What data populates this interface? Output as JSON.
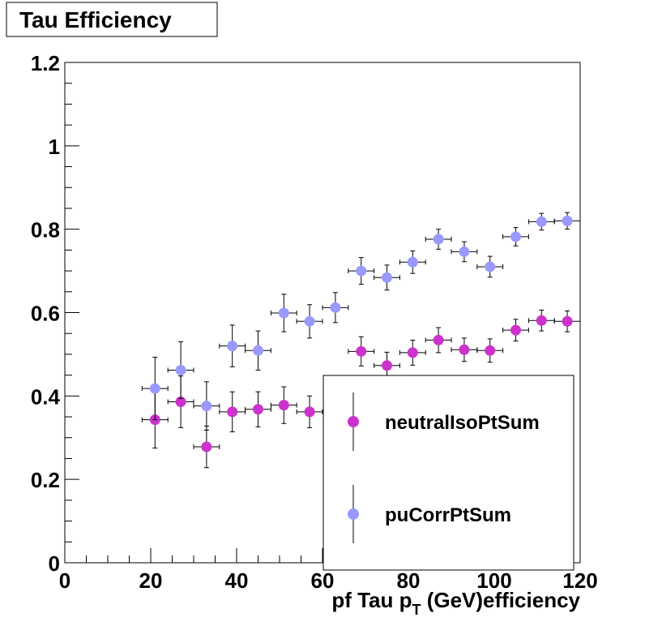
{
  "chart_data": {
    "type": "scatter",
    "title": "Tau Efficiency",
    "xlabel": {
      "main": "pf Tau p",
      "sub": "T",
      "rest": " (GeV)efficiency"
    },
    "xlim": [
      0,
      120
    ],
    "ylim": [
      0,
      1.2
    ],
    "xticks": [
      "0",
      "20",
      "40",
      "60",
      "80",
      "100",
      "120"
    ],
    "yticks": [
      "0",
      "0.2",
      "0.4",
      "0.6",
      "0.8",
      "1",
      "1.2"
    ],
    "xtick_values": [
      0,
      20,
      40,
      60,
      80,
      100,
      120
    ],
    "ytick_values": [
      0,
      0.2,
      0.4,
      0.6,
      0.8,
      1.0,
      1.2
    ],
    "x_halfwidth": 3,
    "legend_position": "bottom-right",
    "grid": false,
    "series": [
      {
        "name": "neutralIsoPtSum",
        "color": "#cc33cc",
        "points": [
          {
            "x": 21,
            "y": 0.343,
            "yerr": 0.068
          },
          {
            "x": 27,
            "y": 0.386,
            "yerr": 0.062
          },
          {
            "x": 33,
            "y": 0.278,
            "yerr": 0.05
          },
          {
            "x": 39,
            "y": 0.362,
            "yerr": 0.048
          },
          {
            "x": 45,
            "y": 0.368,
            "yerr": 0.042
          },
          {
            "x": 51,
            "y": 0.378,
            "yerr": 0.044
          },
          {
            "x": 57,
            "y": 0.362,
            "yerr": 0.038
          },
          {
            "x": 69,
            "y": 0.507,
            "yerr": 0.035
          },
          {
            "x": 75,
            "y": 0.473,
            "yerr": 0.032
          },
          {
            "x": 81,
            "y": 0.504,
            "yerr": 0.03
          },
          {
            "x": 87,
            "y": 0.534,
            "yerr": 0.03
          },
          {
            "x": 93,
            "y": 0.511,
            "yerr": 0.028
          },
          {
            "x": 99,
            "y": 0.509,
            "yerr": 0.028
          },
          {
            "x": 105,
            "y": 0.558,
            "yerr": 0.026
          },
          {
            "x": 111,
            "y": 0.581,
            "yerr": 0.025
          },
          {
            "x": 117,
            "y": 0.579,
            "yerr": 0.025
          }
        ]
      },
      {
        "name": "puCorrPtSum",
        "color": "#9999ff",
        "points": [
          {
            "x": 21,
            "y": 0.418,
            "yerr": 0.075
          },
          {
            "x": 27,
            "y": 0.462,
            "yerr": 0.068
          },
          {
            "x": 33,
            "y": 0.376,
            "yerr": 0.058
          },
          {
            "x": 39,
            "y": 0.52,
            "yerr": 0.05
          },
          {
            "x": 45,
            "y": 0.509,
            "yerr": 0.047
          },
          {
            "x": 51,
            "y": 0.599,
            "yerr": 0.045
          },
          {
            "x": 57,
            "y": 0.579,
            "yerr": 0.04
          },
          {
            "x": 63,
            "y": 0.612,
            "yerr": 0.036
          },
          {
            "x": 69,
            "y": 0.7,
            "yerr": 0.032
          },
          {
            "x": 75,
            "y": 0.684,
            "yerr": 0.03
          },
          {
            "x": 81,
            "y": 0.721,
            "yerr": 0.027
          },
          {
            "x": 87,
            "y": 0.776,
            "yerr": 0.024
          },
          {
            "x": 93,
            "y": 0.746,
            "yerr": 0.024
          },
          {
            "x": 99,
            "y": 0.71,
            "yerr": 0.025
          },
          {
            "x": 105,
            "y": 0.782,
            "yerr": 0.022
          },
          {
            "x": 111,
            "y": 0.818,
            "yerr": 0.02
          },
          {
            "x": 117,
            "y": 0.82,
            "yerr": 0.02
          }
        ]
      }
    ]
  }
}
